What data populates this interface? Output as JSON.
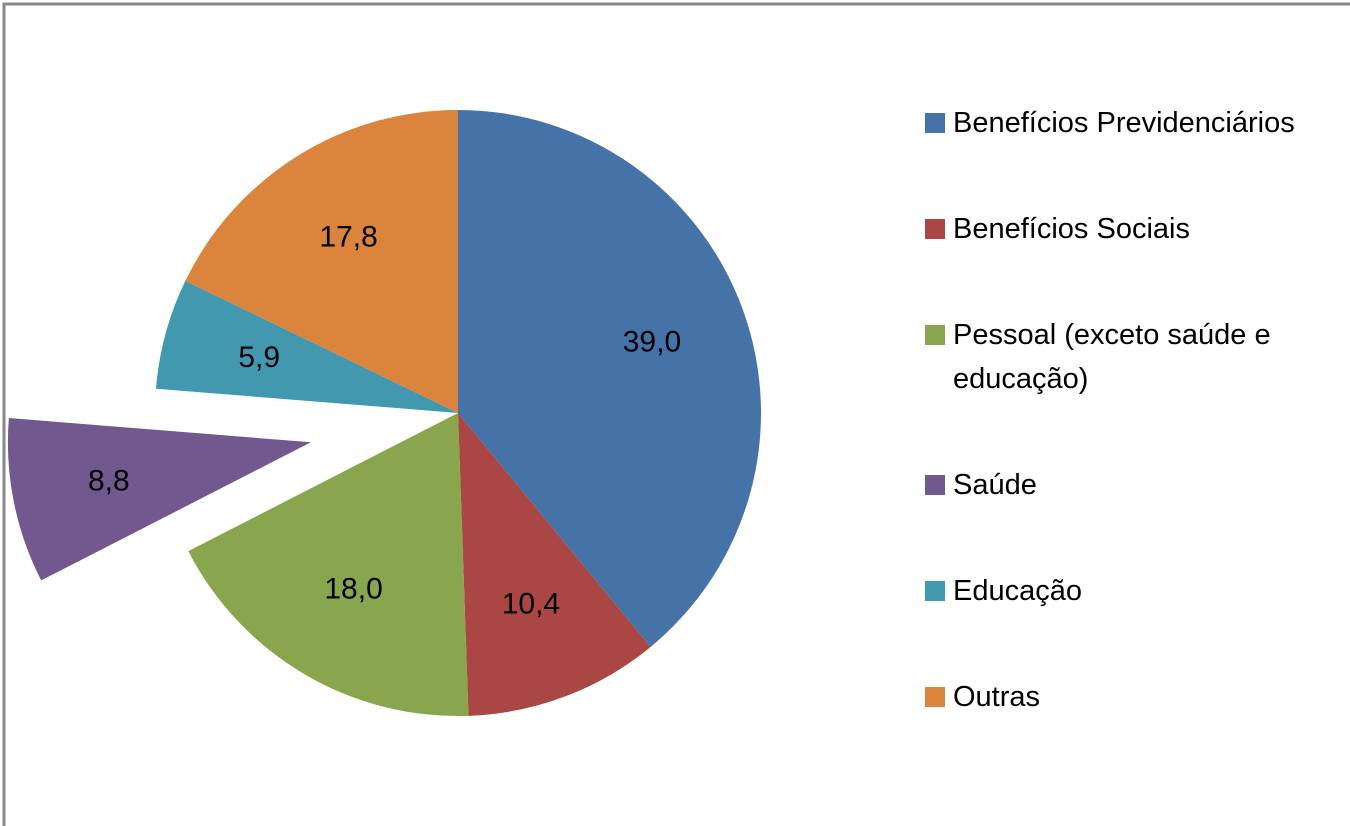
{
  "chart_data": {
    "type": "pie",
    "categories": [
      "Benefícios Previdenciários",
      "Benefícios Sociais",
      "Pessoal (exceto saúde e educação)",
      "Saúde",
      "Educação",
      "Outras"
    ],
    "values": [
      39.0,
      10.4,
      18.0,
      8.8,
      5.9,
      17.8
    ],
    "value_labels": [
      "39,0",
      "10,4",
      "18,0",
      "8,8",
      "5,9",
      "17,8"
    ],
    "colors": [
      "#4572a7",
      "#aa4643",
      "#89a54e",
      "#71588f",
      "#4198af",
      "#db843d"
    ],
    "exploded": [
      3
    ],
    "legend": "right"
  }
}
